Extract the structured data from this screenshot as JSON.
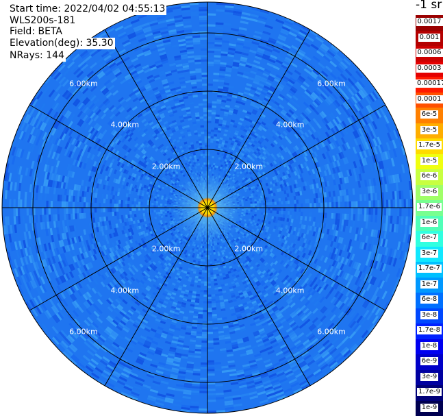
{
  "header": {
    "start_time": "Start time: 2022/04/02 04:55:13",
    "site": "WLS200s-181",
    "field": "Field: BETA",
    "elevation": "Elevation(deg): 35.30",
    "nrays": "NRays: 144"
  },
  "map": {
    "ring_labels": [
      "2.00km",
      "4.00km",
      "6.00km"
    ],
    "palette": {
      "background": "#1f75f0",
      "ring_line": "#000000",
      "center_hot": "#ffe000",
      "center_warm": "#ff8a00"
    }
  },
  "colorbar": {
    "unit": "-1 sr",
    "levels": [
      {
        "label": "0.0017",
        "color": "#9a0000"
      },
      {
        "label": "0.001",
        "color": "#b40000"
      },
      {
        "label": "0.0006",
        "color": "#cc0000"
      },
      {
        "label": "0.0003",
        "color": "#e40000"
      },
      {
        "label": "0.00017",
        "color": "#ff1a00"
      },
      {
        "label": "0.0001",
        "color": "#ff5000"
      },
      {
        "label": "6e-5",
        "color": "#ff8000"
      },
      {
        "label": "3e-5",
        "color": "#ffae00"
      },
      {
        "label": "1.7e-5",
        "color": "#ffdc00"
      },
      {
        "label": "1e-5",
        "color": "#f0ff10"
      },
      {
        "label": "6e-6",
        "color": "#c8ff40"
      },
      {
        "label": "3e-6",
        "color": "#a0ff68"
      },
      {
        "label": "1.7e-6",
        "color": "#78ff90"
      },
      {
        "label": "1e-6",
        "color": "#50ffb8"
      },
      {
        "label": "6e-7",
        "color": "#30ffe0"
      },
      {
        "label": "3e-7",
        "color": "#10e8ff"
      },
      {
        "label": "1.7e-7",
        "color": "#00c0ff"
      },
      {
        "label": "1e-7",
        "color": "#0098ff"
      },
      {
        "label": "6e-8",
        "color": "#0070ff"
      },
      {
        "label": "3e-8",
        "color": "#0048ff"
      },
      {
        "label": "1.7e-8",
        "color": "#0020ff"
      },
      {
        "label": "1e-8",
        "color": "#0000f0"
      },
      {
        "label": "6e-9",
        "color": "#0000c8"
      },
      {
        "label": "3e-9",
        "color": "#0000a0"
      },
      {
        "label": "1.7e-9",
        "color": "#000078"
      },
      {
        "label": "1e-9",
        "color": "#000050"
      }
    ]
  }
}
